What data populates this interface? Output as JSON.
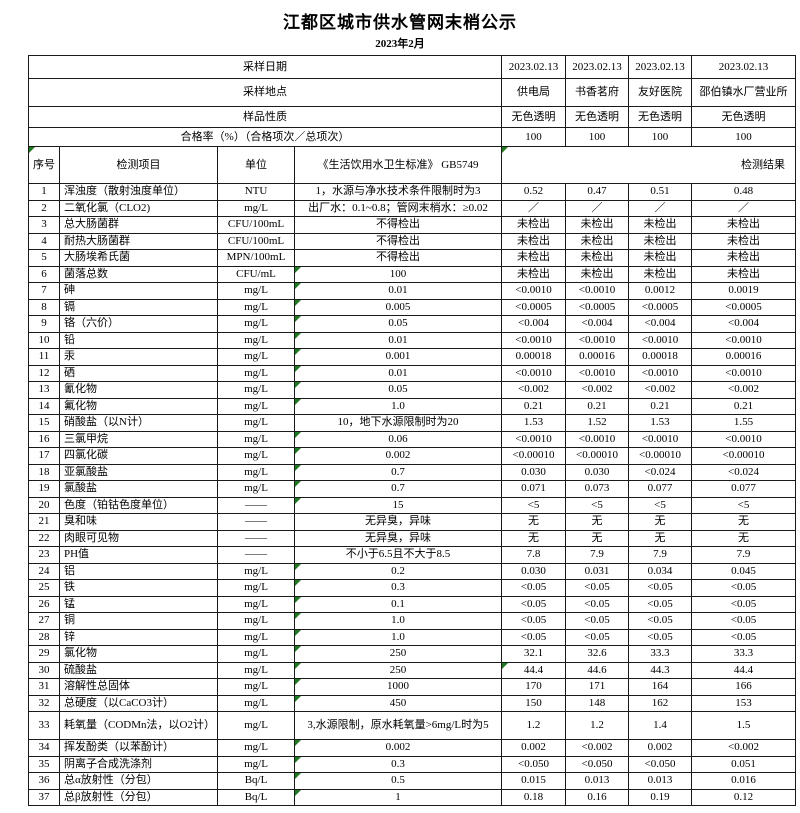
{
  "page": {
    "title": "江都区城市供水管网末梢公示",
    "subtitle": "2023年2月"
  },
  "colors": {
    "flag_green": "#1f7a1f",
    "border": "#1a1a1a",
    "text": "#000000",
    "background": "#ffffff"
  },
  "header": {
    "info_rows": [
      {
        "name": "sample-date",
        "label": "采样日期",
        "values": [
          "2023.02.13",
          "2023.02.13",
          "2023.02.13",
          "2023.02.13"
        ]
      },
      {
        "name": "sample-place",
        "label": "采样地点",
        "values": [
          "供电局",
          "书香茗府",
          "友好医院",
          "邵伯镇水厂营业所"
        ]
      },
      {
        "name": "sample-nature",
        "label": "样品性质",
        "values": [
          "无色透明",
          "无色透明",
          "无色透明",
          "无色透明"
        ]
      },
      {
        "name": "pass-rate",
        "label": "合格率（%）（合格项次／总项次）",
        "values": [
          "100",
          "100",
          "100",
          "100"
        ]
      }
    ]
  },
  "columns": {
    "index": "序号",
    "item": "检测项目",
    "unit": "单位",
    "standard": "《生活饮用水卫生标准》 GB5749",
    "results": "检测结果"
  },
  "rows": [
    {
      "no": "1",
      "item": "浑浊度（散射浊度单位）",
      "unit": "NTU",
      "standard": "1，水源与净水技术条件限制时为3",
      "mark": false,
      "results": [
        "0.52",
        "0.47",
        "0.51",
        "0.48"
      ]
    },
    {
      "no": "2",
      "item": "二氧化氯（CLO2)",
      "unit": "mg/L",
      "standard": "出厂水：0.1~0.8；管网末梢水：≥0.02",
      "mark": false,
      "results": [
        "／",
        "／",
        "／",
        "／"
      ]
    },
    {
      "no": "3",
      "item": "总大肠菌群",
      "unit": "CFU/100mL",
      "standard": "不得检出",
      "mark": false,
      "results": [
        "未检出",
        "未检出",
        "未检出",
        "未检出"
      ]
    },
    {
      "no": "4",
      "item": "耐热大肠菌群",
      "unit": "CFU/100mL",
      "standard": "不得检出",
      "mark": false,
      "results": [
        "未检出",
        "未检出",
        "未检出",
        "未检出"
      ]
    },
    {
      "no": "5",
      "item": "大肠埃希氏菌",
      "unit": "MPN/100mL",
      "standard": "不得检出",
      "mark": false,
      "results": [
        "未检出",
        "未检出",
        "未检出",
        "未检出"
      ]
    },
    {
      "no": "6",
      "item": "菌落总数",
      "unit": "CFU/mL",
      "standard": "100",
      "mark": true,
      "results": [
        "未检出",
        "未检出",
        "未检出",
        "未检出"
      ]
    },
    {
      "no": "7",
      "item": "砷",
      "unit": "mg/L",
      "standard": "0.01",
      "mark": true,
      "results": [
        "<0.0010",
        "<0.0010",
        "0.0012",
        "0.0019"
      ]
    },
    {
      "no": "8",
      "item": "镉",
      "unit": "mg/L",
      "standard": "0.005",
      "mark": true,
      "results": [
        "<0.0005",
        "<0.0005",
        "<0.0005",
        "<0.0005"
      ]
    },
    {
      "no": "9",
      "item": "铬（六价）",
      "unit": "mg/L",
      "standard": "0.05",
      "mark": true,
      "results": [
        "<0.004",
        "<0.004",
        "<0.004",
        "<0.004"
      ]
    },
    {
      "no": "10",
      "item": "铅",
      "unit": "mg/L",
      "standard": "0.01",
      "mark": true,
      "results": [
        "<0.0010",
        "<0.0010",
        "<0.0010",
        "<0.0010"
      ]
    },
    {
      "no": "11",
      "item": "汞",
      "unit": "mg/L",
      "standard": "0.001",
      "mark": true,
      "results": [
        "0.00018",
        "0.00016",
        "0.00018",
        "0.00016"
      ]
    },
    {
      "no": "12",
      "item": "硒",
      "unit": "mg/L",
      "standard": "0.01",
      "mark": true,
      "results": [
        "<0.0010",
        "<0.0010",
        "<0.0010",
        "<0.0010"
      ]
    },
    {
      "no": "13",
      "item": "氰化物",
      "unit": "mg/L",
      "standard": "0.05",
      "mark": true,
      "results": [
        "<0.002",
        "<0.002",
        "<0.002",
        "<0.002"
      ]
    },
    {
      "no": "14",
      "item": "氟化物",
      "unit": "mg/L",
      "standard": "1.0",
      "mark": true,
      "results": [
        "0.21",
        "0.21",
        "0.21",
        "0.21"
      ]
    },
    {
      "no": "15",
      "item": "硝酸盐（以N计）",
      "unit": "mg/L",
      "standard": "10，地下水源限制时为20",
      "mark": false,
      "results": [
        "1.53",
        "1.52",
        "1.53",
        "1.55"
      ]
    },
    {
      "no": "16",
      "item": "三氯甲烷",
      "unit": "mg/L",
      "standard": "0.06",
      "mark": true,
      "results": [
        "<0.0010",
        "<0.0010",
        "<0.0010",
        "<0.0010"
      ]
    },
    {
      "no": "17",
      "item": "四氯化碳",
      "unit": "mg/L",
      "standard": "0.002",
      "mark": true,
      "results": [
        "<0.00010",
        "<0.00010",
        "<0.00010",
        "<0.00010"
      ]
    },
    {
      "no": "18",
      "item": "亚氯酸盐",
      "unit": "mg/L",
      "standard": "0.7",
      "mark": true,
      "results": [
        "0.030",
        "0.030",
        "<0.024",
        "<0.024"
      ]
    },
    {
      "no": "19",
      "item": "氯酸盐",
      "unit": "mg/L",
      "standard": "0.7",
      "mark": true,
      "results": [
        "0.071",
        "0.073",
        "0.077",
        "0.077"
      ]
    },
    {
      "no": "20",
      "item": "色度（铂钴色度单位）",
      "unit": "——",
      "standard": "15",
      "mark": true,
      "results": [
        "<5",
        "<5",
        "<5",
        "<5"
      ]
    },
    {
      "no": "21",
      "item": "臭和味",
      "unit": "——",
      "standard": "无异臭，异味",
      "mark": false,
      "results": [
        "无",
        "无",
        "无",
        "无"
      ]
    },
    {
      "no": "22",
      "item": "肉眼可见物",
      "unit": "——",
      "standard": "无异臭，异味",
      "mark": false,
      "results": [
        "无",
        "无",
        "无",
        "无"
      ]
    },
    {
      "no": "23",
      "item": "PH值",
      "unit": "——",
      "standard": "不小于6.5且不大于8.5",
      "mark": false,
      "results": [
        "7.8",
        "7.9",
        "7.9",
        "7.9"
      ]
    },
    {
      "no": "24",
      "item": "铝",
      "unit": "mg/L",
      "standard": "0.2",
      "mark": true,
      "results": [
        "0.030",
        "0.031",
        "0.034",
        "0.045"
      ]
    },
    {
      "no": "25",
      "item": "铁",
      "unit": "mg/L",
      "standard": "0.3",
      "mark": true,
      "results": [
        "<0.05",
        "<0.05",
        "<0.05",
        "<0.05"
      ]
    },
    {
      "no": "26",
      "item": "锰",
      "unit": "mg/L",
      "standard": "0.1",
      "mark": true,
      "results": [
        "<0.05",
        "<0.05",
        "<0.05",
        "<0.05"
      ]
    },
    {
      "no": "27",
      "item": "铜",
      "unit": "mg/L",
      "standard": "1.0",
      "mark": true,
      "results": [
        "<0.05",
        "<0.05",
        "<0.05",
        "<0.05"
      ]
    },
    {
      "no": "28",
      "item": "锌",
      "unit": "mg/L",
      "standard": "1.0",
      "mark": true,
      "results": [
        "<0.05",
        "<0.05",
        "<0.05",
        "<0.05"
      ]
    },
    {
      "no": "29",
      "item": "氯化物",
      "unit": "mg/L",
      "standard": "250",
      "mark": true,
      "results": [
        "32.1",
        "32.6",
        "33.3",
        "33.3"
      ]
    },
    {
      "no": "30",
      "item": "硫酸盐",
      "unit": "mg/L",
      "standard": "250",
      "mark": true,
      "result_mark": 0,
      "results": [
        "44.4",
        "44.6",
        "44.3",
        "44.4"
      ]
    },
    {
      "no": "31",
      "item": "溶解性总固体",
      "unit": "mg/L",
      "standard": "1000",
      "mark": true,
      "results": [
        "170",
        "171",
        "164",
        "166"
      ]
    },
    {
      "no": "32",
      "item": "总硬度（以CaCO3计）",
      "unit": "mg/L",
      "standard": "450",
      "mark": true,
      "results": [
        "150",
        "148",
        "162",
        "153"
      ]
    },
    {
      "no": "33",
      "item": "耗氧量（CODMn法，以O2计）",
      "unit": "mg/L",
      "standard": "3,水源限制，原水耗氧量>6mg/L时为5",
      "mark": false,
      "tall": true,
      "results": [
        "1.2",
        "1.2",
        "1.4",
        "1.5"
      ]
    },
    {
      "no": "34",
      "item": "挥发酚类（以苯酚计）",
      "unit": "mg/L",
      "standard": "0.002",
      "mark": true,
      "results": [
        "0.002",
        "<0.002",
        "0.002",
        "<0.002"
      ]
    },
    {
      "no": "35",
      "item": "阴离子合成洗涤剂",
      "unit": "mg/L",
      "standard": "0.3",
      "mark": true,
      "results": [
        "<0.050",
        "<0.050",
        "<0.050",
        "0.051"
      ]
    },
    {
      "no": "36",
      "item": "总α放射性（分包）",
      "unit": "Bq/L",
      "standard": "0.5",
      "mark": true,
      "results": [
        "0.015",
        "0.013",
        "0.013",
        "0.016"
      ]
    },
    {
      "no": "37",
      "item": "总β放射性（分包）",
      "unit": "Bq/L",
      "standard": "1",
      "mark": true,
      "results": [
        "0.18",
        "0.16",
        "0.19",
        "0.12"
      ]
    }
  ]
}
